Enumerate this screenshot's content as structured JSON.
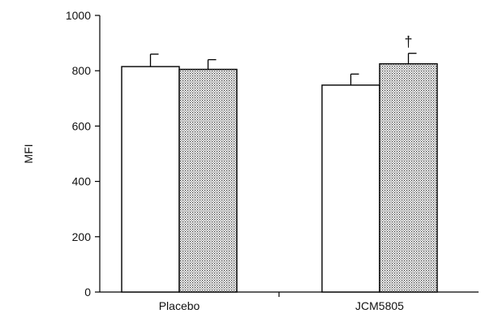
{
  "chart_data": {
    "type": "bar",
    "title": "",
    "xlabel": "",
    "ylabel": "MFI",
    "ylim": [
      0,
      1000
    ],
    "yticks": [
      0,
      200,
      400,
      600,
      800,
      1000
    ],
    "categories": [
      "Placebo",
      "JCM5805"
    ],
    "series": [
      {
        "fill": "open",
        "values": [
          815,
          748
        ],
        "errors": [
          45,
          40
        ]
      },
      {
        "fill": "dotted",
        "values": [
          805,
          825
        ],
        "errors": [
          35,
          38
        ]
      }
    ],
    "grid": false,
    "legend": "none",
    "annotations": [
      {
        "category": "JCM5805",
        "series_index": 1,
        "text": "†"
      }
    ]
  }
}
